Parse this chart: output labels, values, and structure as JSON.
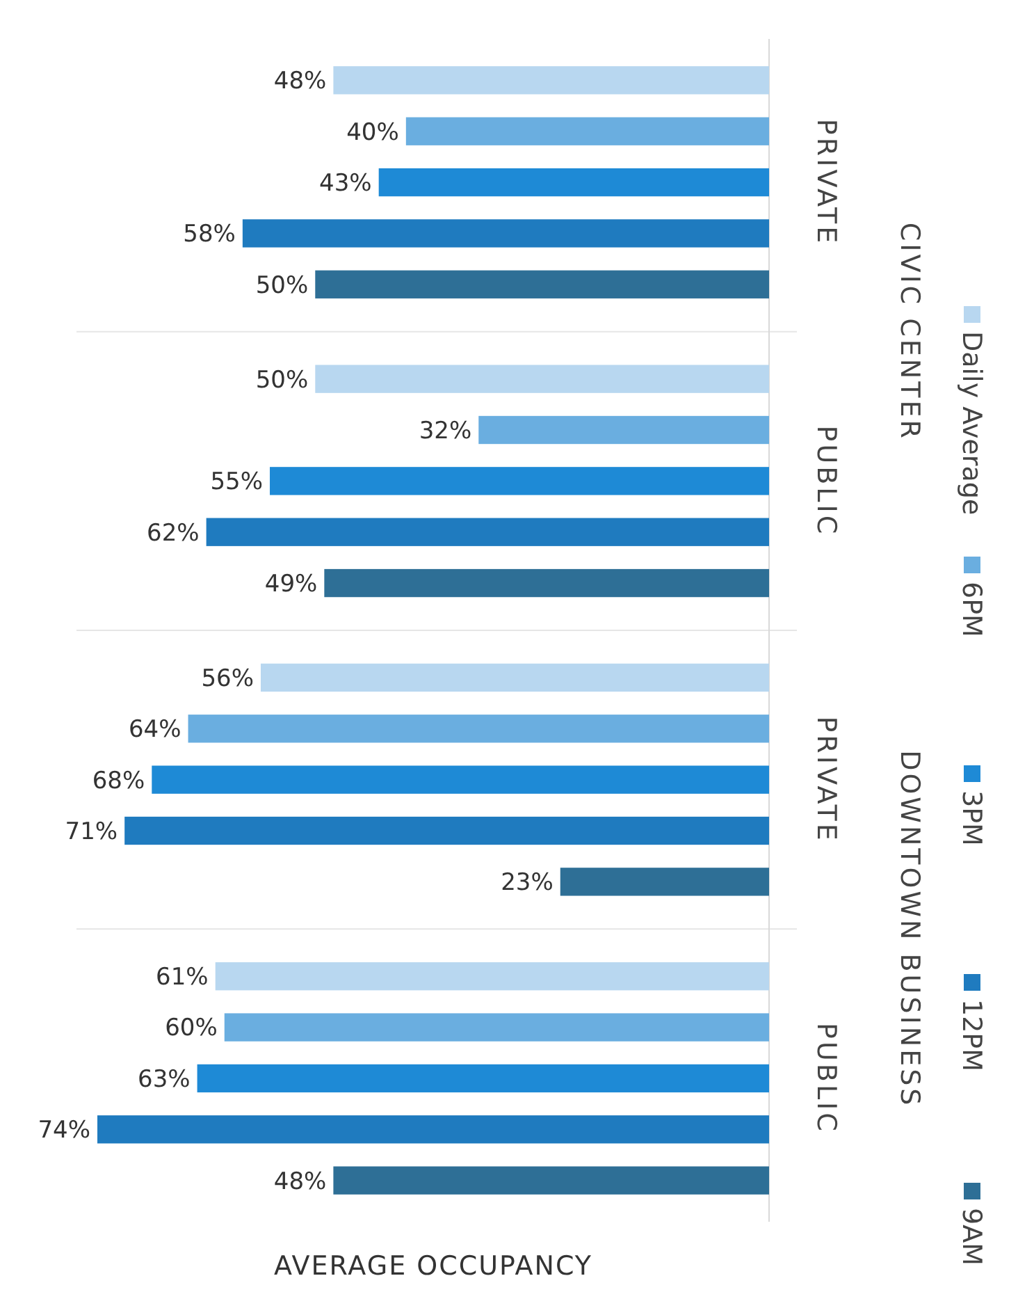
{
  "chart_data": {
    "type": "bar",
    "orientation": "horizontal",
    "xlabel": "AVERAGE OCCUPANCY",
    "categories": [
      "PRIVATE",
      "PUBLIC",
      "PRIVATE",
      "PUBLIC"
    ],
    "annotations": [
      "CIVIC CENTER",
      "DOWNTOWN BUSINESS"
    ],
    "series": [
      {
        "name": "9AM",
        "color": "#2e6f96",
        "values": [
          50,
          49,
          23,
          48
        ],
        "value_labels": [
          "50%",
          "49%",
          "23%",
          "48%"
        ]
      },
      {
        "name": "12PM",
        "color": "#1f7bbf",
        "values": [
          58,
          62,
          71,
          74
        ],
        "value_labels": [
          "58%",
          "62%",
          "71%",
          "74%"
        ]
      },
      {
        "name": "3PM",
        "color": "#1e8ad6",
        "values": [
          43,
          55,
          68,
          63
        ],
        "value_labels": [
          "43%",
          "55%",
          "68%",
          "63%"
        ]
      },
      {
        "name": "6PM",
        "color": "#6aaee0",
        "values": [
          40,
          32,
          64,
          60
        ],
        "value_labels": [
          "40%",
          "32%",
          "64%",
          "60%"
        ]
      },
      {
        "name": "Daily Average",
        "color": "#b8d7f0",
        "values": [
          48,
          50,
          56,
          61
        ],
        "value_labels": [
          "48%",
          "50%",
          "56%",
          "61%"
        ]
      }
    ],
    "legend": "right"
  }
}
